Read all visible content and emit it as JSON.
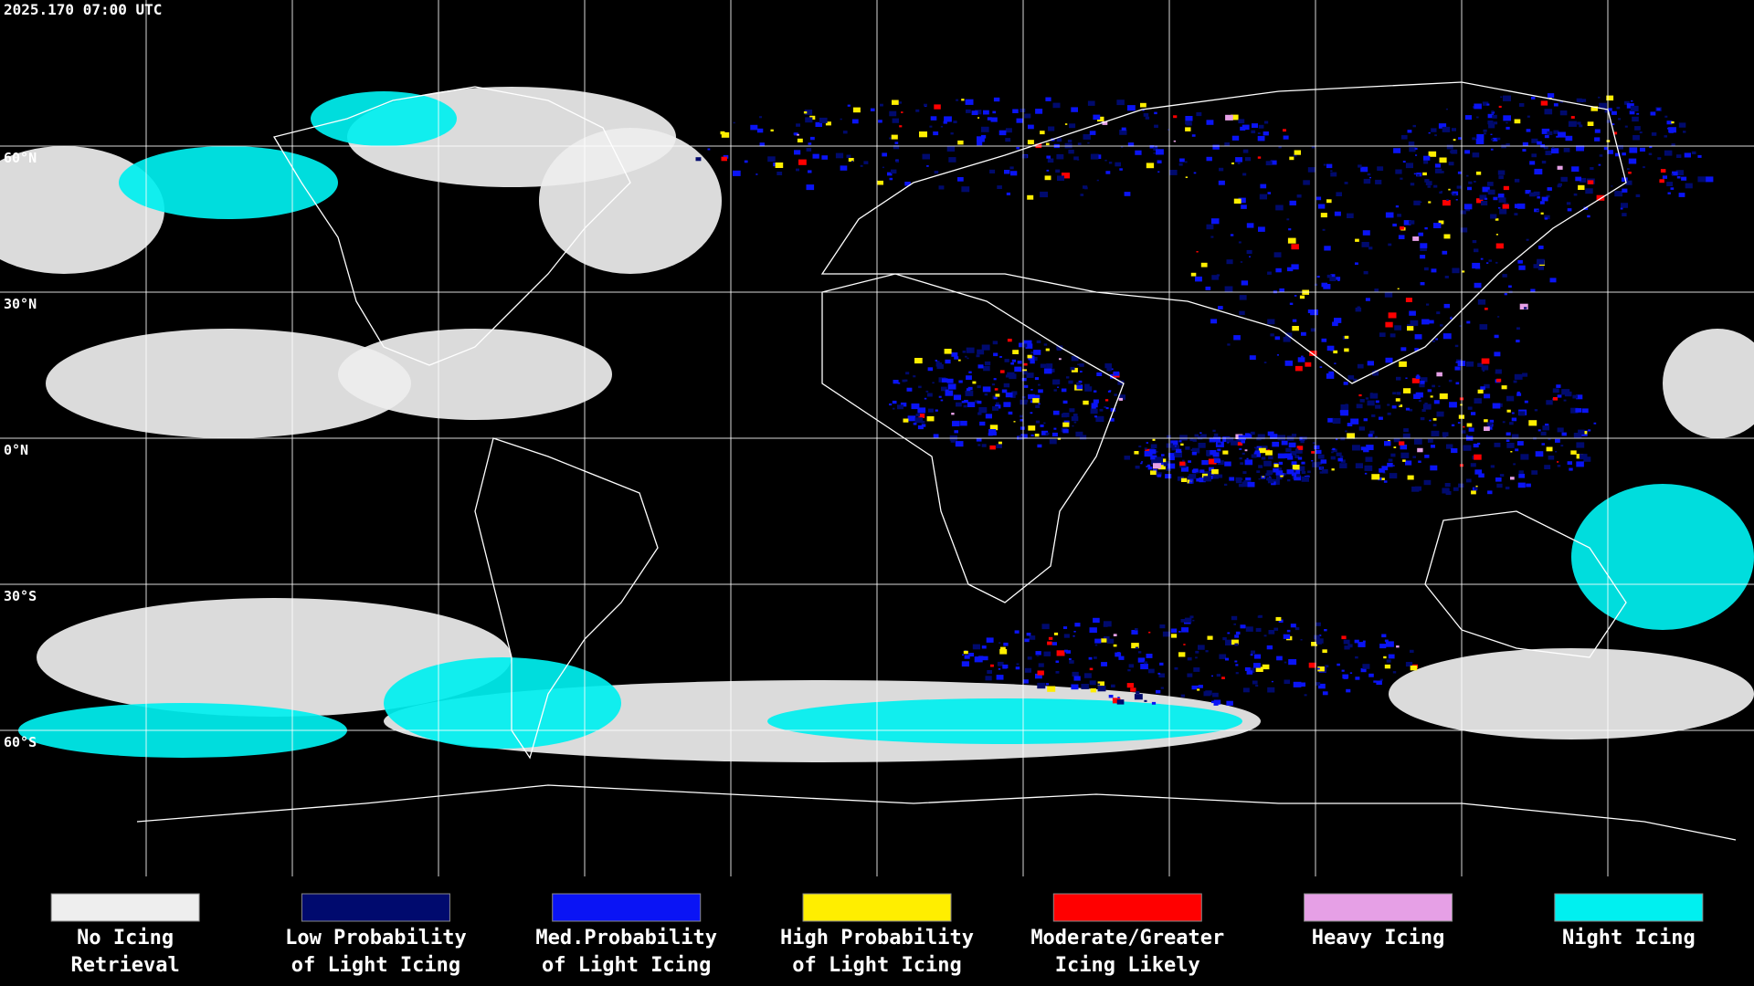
{
  "header": {
    "timestamp": "2025.170 07:00 UTC"
  },
  "map": {
    "latitude_labels": [
      "60°N",
      "30°N",
      "0°N",
      "30°S",
      "60°S"
    ]
  },
  "legend": {
    "items": [
      {
        "label": [
          "No Icing",
          "Retrieval"
        ],
        "color": "#eeeeee"
      },
      {
        "label": [
          "Low Probability",
          "of Light Icing"
        ],
        "color": "#000a6e"
      },
      {
        "label": [
          "Med.Probability",
          "of Light Icing"
        ],
        "color": "#0a14f5"
      },
      {
        "label": [
          "High Probability",
          "of Light Icing"
        ],
        "color": "#ffee00"
      },
      {
        "label": [
          "Moderate/Greater",
          "Icing Likely"
        ],
        "color": "#ff0000"
      },
      {
        "label": [
          "Heavy Icing",
          ""
        ],
        "color": "#e6a0e6"
      },
      {
        "label": [
          "Night Icing",
          ""
        ],
        "color": "#00f0f0"
      }
    ]
  }
}
